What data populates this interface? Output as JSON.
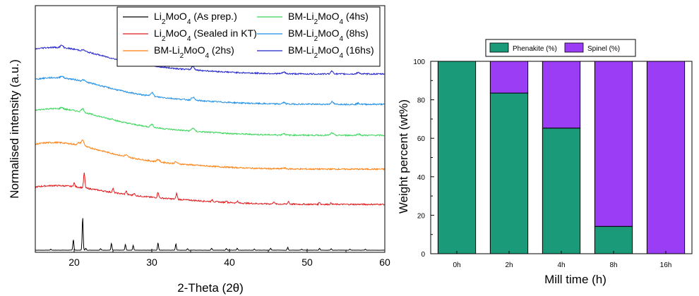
{
  "chart_data": [
    {
      "type": "line",
      "xlabel": "2-Theta (2θ)",
      "ylabel": "Normalised intensity (a.u.)",
      "xlim": [
        15,
        60
      ],
      "x_ticks": [
        "20",
        "30",
        "40",
        "50",
        "60"
      ],
      "x_tick_values": [
        20,
        30,
        40,
        50,
        60
      ],
      "y_ticks_shown": false,
      "legend_position": "top-right",
      "series": [
        {
          "name": "Li2MoO4 (As prep.)",
          "name_base": "Li",
          "name_sub1": "2",
          "name_mid": "MoO",
          "name_sub2": "4",
          "name_tail": " (As prep.)",
          "color": "#000000",
          "offset": 0,
          "peaks": [
            [
              17.0,
              0.05
            ],
            [
              19.9,
              0.55
            ],
            [
              21.1,
              1.7
            ],
            [
              21.5,
              0.1
            ],
            [
              23.4,
              0.08
            ],
            [
              24.8,
              0.35
            ],
            [
              26.6,
              0.3
            ],
            [
              27.6,
              0.25
            ],
            [
              30.8,
              0.38
            ],
            [
              33.1,
              0.33
            ],
            [
              34.6,
              0.08
            ],
            [
              37.7,
              0.1
            ],
            [
              39.6,
              0.09
            ],
            [
              41.0,
              0.1
            ],
            [
              43.2,
              0.06
            ],
            [
              45.3,
              0.1
            ],
            [
              47.5,
              0.15
            ],
            [
              49.3,
              0.05
            ],
            [
              51.6,
              0.1
            ],
            [
              53.1,
              0.08
            ],
            [
              55.5,
              0.05
            ],
            [
              57.5,
              0.05
            ]
          ]
        },
        {
          "name": "Li2MoO4 (Sealed in KT)",
          "name_base": "Li",
          "name_sub1": "2",
          "name_mid": "MoO",
          "name_sub2": "4",
          "name_tail": " (Sealed in KT)",
          "color": "#e31a1c",
          "offset": 1,
          "peaks": [
            [
              20.0,
              0.2
            ],
            [
              21.3,
              0.75
            ],
            [
              25.0,
              0.2
            ],
            [
              26.7,
              0.18
            ],
            [
              27.7,
              0.12
            ],
            [
              30.8,
              0.3
            ],
            [
              33.2,
              0.3
            ],
            [
              37.8,
              0.1
            ],
            [
              39.6,
              0.1
            ],
            [
              41.0,
              0.09
            ],
            [
              45.7,
              0.13
            ],
            [
              47.6,
              0.15
            ],
            [
              51.6,
              0.12
            ],
            [
              53.1,
              0.07
            ]
          ]
        },
        {
          "name": "BM-Li2MoO4 (2hs)",
          "name_base": "BM-Li",
          "name_sub1": "2",
          "name_mid": "MoO",
          "name_sub2": "4",
          "name_tail": " (2hs)",
          "color": "#ff7f0e",
          "offset": 2,
          "peaks": [
            [
              20.6,
              0.12
            ],
            [
              21.1,
              0.3
            ],
            [
              26.7,
              0.08
            ],
            [
              30.8,
              0.12
            ],
            [
              33.1,
              0.08
            ],
            [
              47.0,
              0.05
            ]
          ]
        },
        {
          "name": "BM-Li2MoO4 (4hs)",
          "name_base": "BM-Li",
          "name_sub1": "2",
          "name_mid": "MoO",
          "name_sub2": "4",
          "name_tail": " (4hs)",
          "color": "#3ad65a",
          "offset": 3,
          "peaks": [
            [
              18.4,
              0.08
            ],
            [
              21.1,
              0.18
            ],
            [
              25.0,
              0.05
            ],
            [
              30.0,
              0.15
            ],
            [
              35.3,
              0.16
            ],
            [
              47.0,
              0.08
            ],
            [
              53.2,
              0.12
            ],
            [
              56.6,
              0.07
            ]
          ]
        },
        {
          "name": "BM-Li2MoO4 (8hs)",
          "name_base": "BM-Li",
          "name_sub1": "2",
          "name_mid": "MoO",
          "name_sub2": "4",
          "name_tail": " (8hs)",
          "color": "#1f8ee6",
          "offset": 4,
          "peaks": [
            [
              18.4,
              0.1
            ],
            [
              21.2,
              0.08
            ],
            [
              30.0,
              0.2
            ],
            [
              35.3,
              0.15
            ],
            [
              47.0,
              0.08
            ],
            [
              53.2,
              0.12
            ],
            [
              56.6,
              0.05
            ]
          ]
        },
        {
          "name": "BM-Li2MoO4 (16hs)",
          "name_base": "BM-Li",
          "name_sub1": "2",
          "name_mid": "MoO",
          "name_sub2": "4",
          "name_tail": " (16hs)",
          "color": "#2020cc",
          "offset": 5,
          "peaks": [
            [
              18.4,
              0.12
            ],
            [
              21.2,
              0.06
            ],
            [
              30.0,
              0.2
            ],
            [
              35.3,
              0.18
            ],
            [
              47.0,
              0.08
            ],
            [
              53.2,
              0.14
            ],
            [
              56.6,
              0.08
            ]
          ]
        }
      ]
    },
    {
      "type": "bar",
      "stacked": true,
      "xlabel": "Mill time (h)",
      "ylabel": "Weight percent (wt%)",
      "ylim": [
        0,
        100
      ],
      "y_ticks": [
        "0",
        "20",
        "40",
        "60",
        "80",
        "100"
      ],
      "y_tick_values": [
        0,
        20,
        40,
        60,
        80,
        100
      ],
      "categories": [
        "0h",
        "2h",
        "4h",
        "8h",
        "16h"
      ],
      "legend_position": "top-center",
      "series": [
        {
          "name": "Phenakite (%)",
          "color": "#1a9a78",
          "values": [
            100,
            83.5,
            65.3,
            14.2,
            0
          ]
        },
        {
          "name": "Spinel (%)",
          "color": "#9b3df5",
          "values": [
            0,
            16.5,
            34.7,
            85.8,
            100
          ]
        }
      ]
    }
  ]
}
